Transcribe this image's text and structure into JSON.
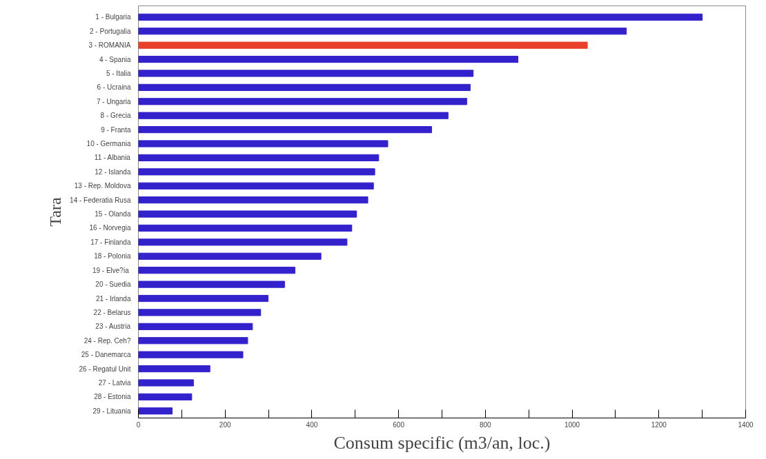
{
  "chart_data": {
    "type": "bar",
    "orientation": "horizontal",
    "xlabel": "Consum specific (m3/an, loc.)",
    "ylabel": "Tara",
    "categories": [
      "1 - Bulgaria",
      "2 - Portugalia",
      "3 - ROMANIA",
      "4 - Spania",
      "5 - Italia",
      "6 - Ucraina",
      "7 - Ungaria",
      "8 - Grecia",
      "9 - Franta",
      "10 - Germania",
      "11 - Albania",
      "12 - Islanda",
      "13 - Rep. Moldova",
      "14 - Federatia Rusa",
      "15 - Olanda",
      "16 - Norvegia",
      "17 - Finlanda",
      "18 - Polonia",
      "19  - Elve?ia",
      "20 - Suedia",
      "21 - Irlanda",
      "22 - Belarus",
      "23 - Austria",
      "24 - Rep. Ceh?",
      "25 - Danemarca",
      "26 - Regatul Unit",
      "27 - Latvia",
      "28 - Estonia",
      "29 - Lituania"
    ],
    "values": [
      1300,
      1125,
      1035,
      875,
      772,
      765,
      757,
      714,
      676,
      575,
      554,
      545,
      542,
      529,
      503,
      492,
      481,
      421,
      361,
      337,
      299,
      282,
      263,
      252,
      241,
      165,
      127,
      123,
      78
    ],
    "colors": [
      "#3322cc",
      "#3322cc",
      "#e8402a",
      "#3322cc",
      "#3322cc",
      "#3322cc",
      "#3322cc",
      "#3322cc",
      "#3322cc",
      "#3322cc",
      "#3322cc",
      "#3322cc",
      "#3322cc",
      "#3322cc",
      "#3322cc",
      "#3322cc",
      "#3322cc",
      "#3322cc",
      "#3322cc",
      "#3322cc",
      "#3322cc",
      "#3322cc",
      "#3322cc",
      "#3322cc",
      "#3322cc",
      "#3322cc",
      "#3322cc",
      "#3322cc",
      "#3322cc"
    ],
    "xlim": [
      0,
      1400
    ],
    "xticks": [
      0,
      {
        "value": 100,
        "label": null
      },
      200,
      {
        "value": 300,
        "label": null
      },
      400,
      {
        "value": 500,
        "label": null
      },
      600,
      {
        "value": 700,
        "label": null
      },
      800,
      {
        "value": 900,
        "label": null
      },
      1000,
      {
        "value": 1100,
        "label": null
      },
      1200,
      {
        "value": 1300,
        "label": null
      },
      1400
    ],
    "grid": false
  }
}
